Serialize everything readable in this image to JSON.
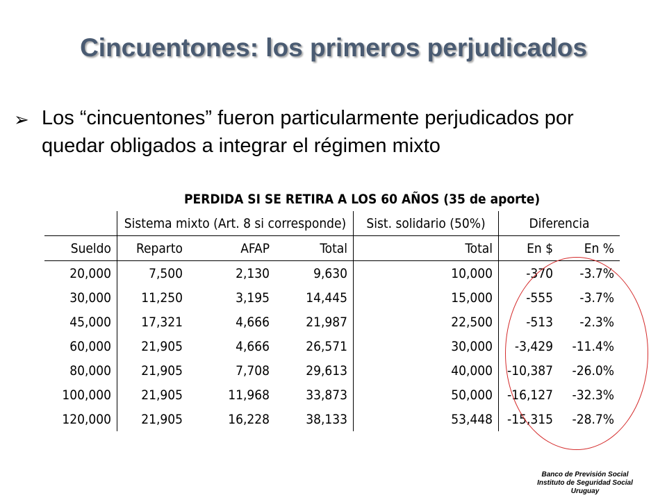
{
  "slide": {
    "title": "Cincuentones: los primeros perjudicados",
    "bullet_symbol": "➢",
    "bullet_text": "Los “cincuentones” fueron particularmente perjudicados por quedar obligados a integrar el régimen mixto",
    "table_title": "PERDIDA SI SE RETIRA A LOS 60 AÑOS (35 de aporte)",
    "group_headers": [
      "",
      "Sistema mixto (Art. 8 si corresponde)",
      "Sist. solidario (50%)",
      "Diferencia"
    ],
    "columns": [
      "Sueldo",
      "Reparto",
      "AFAP",
      "Total",
      "Total",
      "En $",
      "En %"
    ],
    "rows": [
      [
        "20,000",
        "7,500",
        "2,130",
        "9,630",
        "10,000",
        "-370",
        "-3.7%"
      ],
      [
        "30,000",
        "11,250",
        "3,195",
        "14,445",
        "15,000",
        "-555",
        "-3.7%"
      ],
      [
        "45,000",
        "17,321",
        "4,666",
        "21,987",
        "22,500",
        "-513",
        "-2.3%"
      ],
      [
        "60,000",
        "21,905",
        "4,666",
        "26,571",
        "30,000",
        "-3,429",
        "-11.4%"
      ],
      [
        "80,000",
        "21,905",
        "7,708",
        "29,613",
        "40,000",
        "-10,387",
        "-26.0%"
      ],
      [
        "100,000",
        "21,905",
        "11,968",
        "33,873",
        "50,000",
        "-16,127",
        "-32.3%"
      ],
      [
        "120,000",
        "21,905",
        "16,228",
        "38,133",
        "53,448",
        "-15,315",
        "-28.7%"
      ]
    ],
    "footer": [
      "Banco de Previsión Social",
      "Instituto de Seguridad Social",
      "Uruguay"
    ],
    "colors": {
      "title": "#4a5b72",
      "highlight_ellipse": "#d42b2b"
    }
  }
}
